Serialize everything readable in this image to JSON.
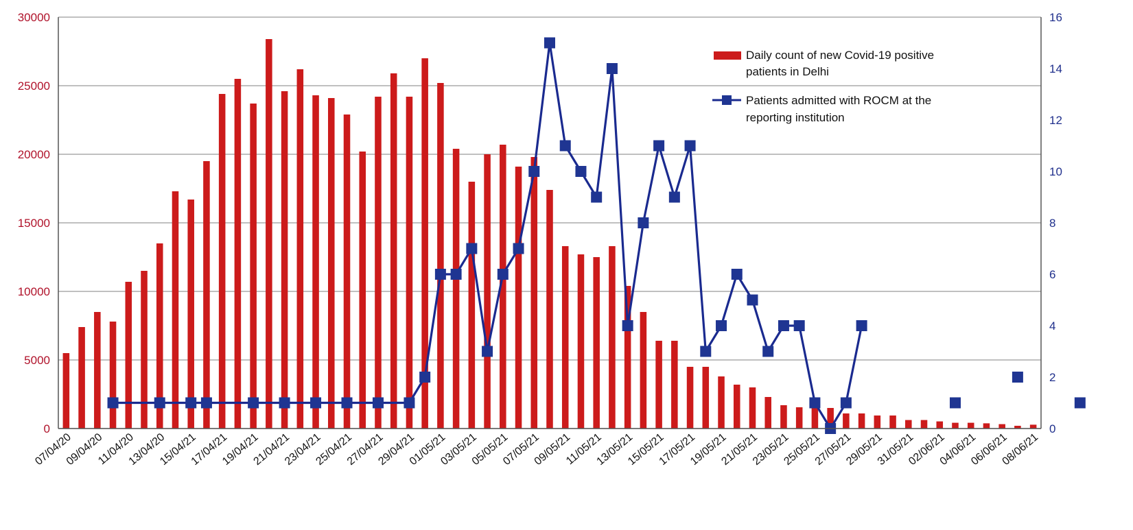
{
  "colors": {
    "bar": "#cc1b1b",
    "line": "#1a2a8f",
    "marker": "#1f3592",
    "grid": "#9a9a9a",
    "left_axis_text": "#b0122a",
    "right_axis_text": "#1f2f8c"
  },
  "chart_data": {
    "type": "bar",
    "title": "",
    "xlabel": "",
    "ylabel": "",
    "y2label": "",
    "ylim": [
      0,
      30000
    ],
    "y2lim": [
      0,
      16
    ],
    "grid": true,
    "legend_position": "top-right",
    "y_ticks": [
      "0",
      "5000",
      "10000",
      "15000",
      "20000",
      "25000",
      "30000"
    ],
    "y2_ticks": [
      "0",
      "2",
      "4",
      "6",
      "8",
      "10",
      "12",
      "14",
      "16"
    ],
    "x_tick_labels": [
      "07/04/20",
      "09/04/20",
      "11/04/20",
      "13/04/20",
      "15/04/21",
      "17/04/21",
      "19/04/21",
      "21/04/21",
      "23/04/21",
      "25/04/21",
      "27/04/21",
      "29/04/21",
      "01/05/21",
      "03/05/21",
      "05/05/21",
      "07/05/21",
      "09/05/21",
      "11/05/21",
      "13/05/21",
      "15/05/21",
      "17/05/21",
      "19/05/21",
      "21/05/21",
      "23/05/21",
      "25/05/21",
      "27/05/21",
      "29/05/21",
      "31/05/21",
      "02/06/21",
      "04/06/21",
      "06/06/21",
      "08/06/21"
    ],
    "series": [
      {
        "name": "Daily count of new Covid-19 positive patients in Delhi",
        "type": "bar",
        "axis": "left",
        "values": [
          5500,
          7400,
          8500,
          7800,
          10700,
          11500,
          13500,
          17300,
          16700,
          19500,
          24400,
          25500,
          23700,
          28400,
          24600,
          26200,
          24300,
          24100,
          22900,
          20200,
          24200,
          25900,
          24200,
          27000,
          25200,
          20400,
          18000,
          20000,
          20700,
          19100,
          19800,
          17400,
          13300,
          12700,
          12500,
          13300,
          10400,
          8500,
          6400,
          6400,
          4500,
          4500,
          3800,
          3200,
          3000,
          2300,
          1700,
          1550,
          1600,
          1500,
          1100,
          1100,
          950,
          950,
          620,
          620,
          520,
          420,
          420,
          380,
          320,
          200,
          280
        ]
      },
      {
        "name": "Patients admitted with ROCM at the reporting institution",
        "type": "line",
        "axis": "right",
        "points": [
          [
            3,
            1
          ],
          [
            6,
            1
          ],
          [
            8,
            1
          ],
          [
            9,
            1
          ],
          [
            12,
            1
          ],
          [
            14,
            1
          ],
          [
            16,
            1
          ],
          [
            18,
            1
          ],
          [
            20,
            1
          ],
          [
            22,
            1
          ],
          [
            23,
            2
          ],
          [
            24,
            6
          ],
          [
            25,
            6
          ],
          [
            26,
            7
          ],
          [
            27,
            3
          ],
          [
            28,
            6
          ],
          [
            29,
            7
          ],
          [
            30,
            10
          ],
          [
            31,
            15
          ],
          [
            32,
            11
          ],
          [
            33,
            10
          ],
          [
            34,
            9
          ],
          [
            35,
            14
          ],
          [
            36,
            4
          ],
          [
            37,
            8
          ],
          [
            38,
            11
          ],
          [
            39,
            9
          ],
          [
            40,
            11
          ],
          [
            41,
            3
          ],
          [
            42,
            4
          ],
          [
            43,
            6
          ],
          [
            44,
            5
          ],
          [
            45,
            3
          ],
          [
            46,
            4
          ],
          [
            47,
            4
          ],
          [
            48,
            1
          ],
          [
            49,
            0
          ],
          [
            50,
            1
          ],
          [
            51,
            4
          ]
        ],
        "isolated_points": [
          [
            57,
            1
          ],
          [
            61,
            2
          ],
          [
            65,
            1
          ]
        ]
      }
    ],
    "legend": {
      "bar_label": [
        "Daily count of new Covid-19 positive",
        "patients in Delhi"
      ],
      "line_label": [
        "Patients admitted with ROCM at the",
        "reporting institution"
      ]
    }
  }
}
